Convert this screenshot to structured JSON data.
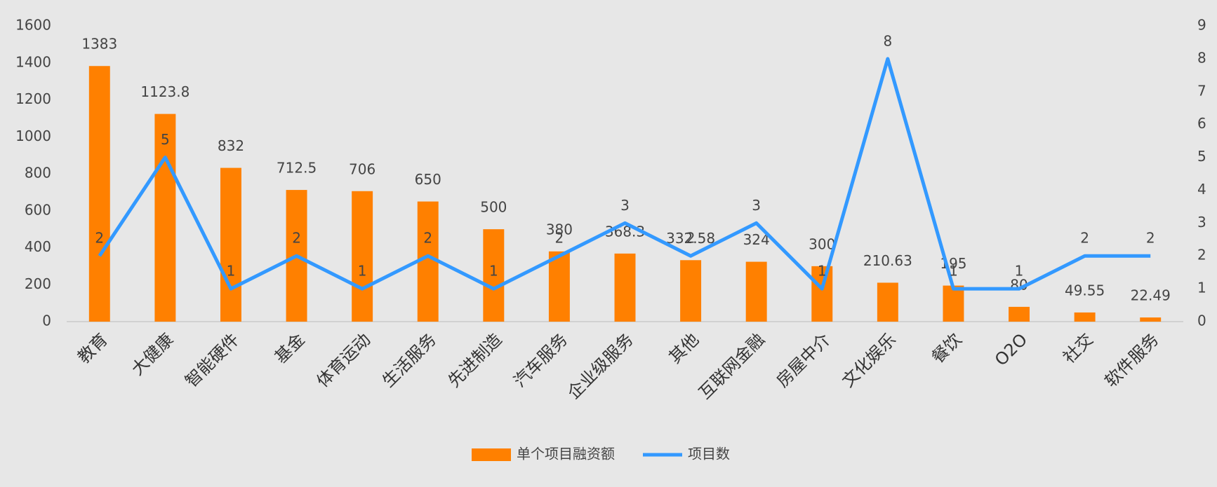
{
  "chart_data": {
    "type": "combo",
    "categories": [
      "教育",
      "大健康",
      "智能硬件",
      "基金",
      "体育运动",
      "生活服务",
      "先进制造",
      "汽车服务",
      "企业级服务",
      "其他",
      "互联网金融",
      "房屋中介",
      "文化娱乐",
      "餐饮",
      "O2O",
      "社交",
      "软件服务"
    ],
    "series": [
      {
        "name": "单个项目融资额",
        "type": "bar",
        "color": "#ff8000",
        "values": [
          1383,
          1123.8,
          832,
          712.5,
          706,
          650,
          500,
          380,
          368.3,
          332.58,
          324,
          300,
          210.63,
          195,
          80,
          49.55,
          22.49
        ]
      },
      {
        "name": "项目数",
        "type": "line",
        "axis": "y2",
        "color": "#3399ff",
        "values": [
          2,
          5,
          1,
          2,
          1,
          2,
          1,
          2,
          3,
          2,
          3,
          1,
          8,
          1,
          1,
          2,
          2
        ]
      }
    ],
    "ylim": [
      0,
      1600
    ],
    "yticks": [
      0,
      200,
      400,
      600,
      800,
      1000,
      1200,
      1400,
      1600
    ],
    "y2lim": [
      0,
      9
    ],
    "y2ticks": [
      0,
      1,
      2,
      3,
      4,
      5,
      6,
      7,
      8,
      9
    ],
    "grid": false,
    "legend": "bottom"
  }
}
